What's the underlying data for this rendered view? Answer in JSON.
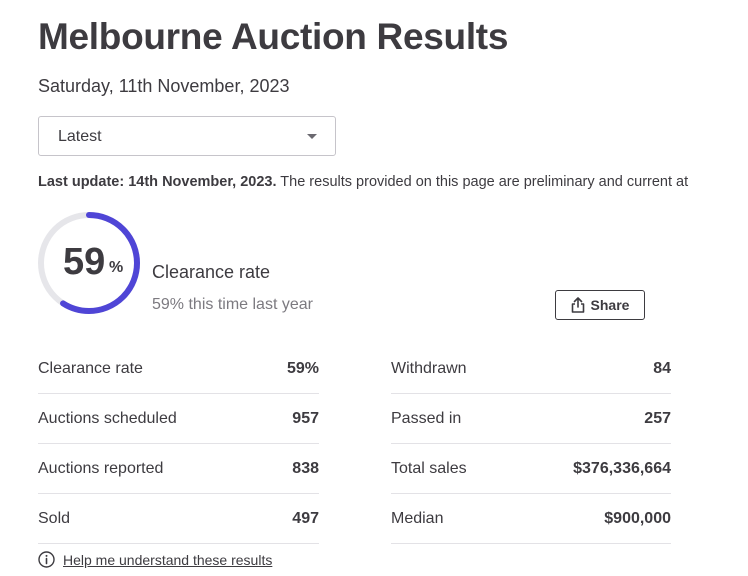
{
  "page": {
    "title": "Melbourne Auction Results",
    "date": "Saturday, 11th November, 2023"
  },
  "filter": {
    "selected": "Latest"
  },
  "update": {
    "label": "Last update: 14th November, 2023.",
    "text": " The results provided on this page are preliminary and current at"
  },
  "clearance": {
    "value": 59,
    "value_text": "59",
    "percent_sign": "%",
    "label": "Clearance rate",
    "last_year": "59% this time last year",
    "accent_color": "#4f45d6",
    "track_color": "#e6e6ea"
  },
  "share": {
    "label": "Share"
  },
  "stats_left": [
    {
      "label": "Clearance rate",
      "value": "59%"
    },
    {
      "label": "Auctions scheduled",
      "value": "957"
    },
    {
      "label": "Auctions reported",
      "value": "838"
    },
    {
      "label": "Sold",
      "value": "497"
    }
  ],
  "stats_right": [
    {
      "label": "Withdrawn",
      "value": "84"
    },
    {
      "label": "Passed in",
      "value": "257"
    },
    {
      "label": "Total sales",
      "value": "$376,336,664"
    },
    {
      "label": "Median",
      "value": "$900,000"
    }
  ],
  "help": {
    "link": "Help me understand these results",
    "icon": "info-icon"
  }
}
